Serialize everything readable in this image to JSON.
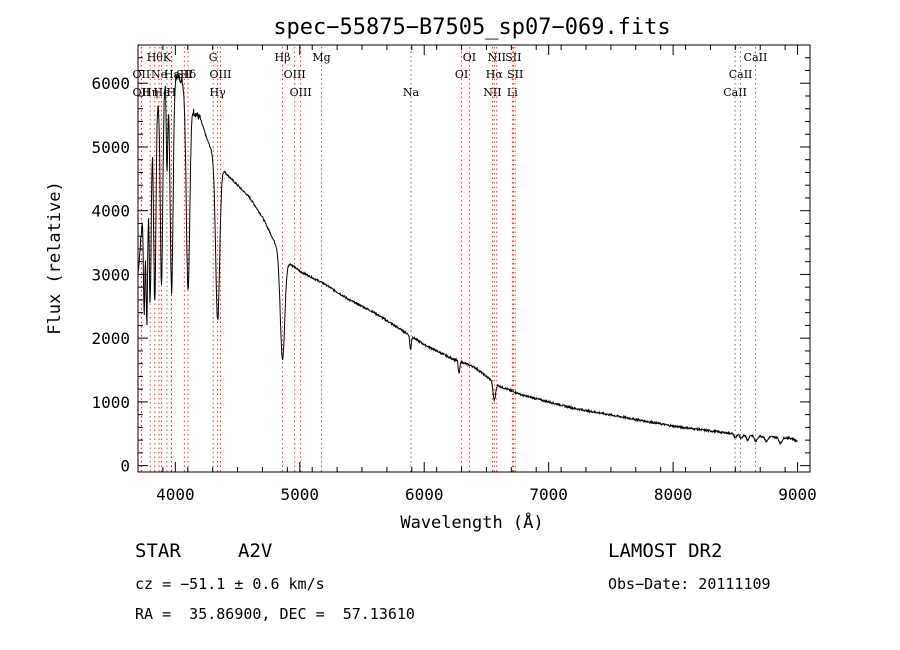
{
  "chart_data": {
    "type": "line",
    "title": "spec−55875−B7505_sp07−069.fits",
    "xlabel": "Wavelength (Å)",
    "ylabel": "Flux (relative)",
    "xlim": [
      3700,
      9100
    ],
    "ylim": [
      -100,
      6600
    ],
    "xticks": [
      4000,
      5000,
      6000,
      7000,
      8000,
      9000
    ],
    "yticks": [
      0,
      1000,
      2000,
      3000,
      4000,
      5000,
      6000
    ],
    "grid": false,
    "series": [
      {
        "color": "#000000",
        "continuum": [
          [
            3700,
            3000
          ],
          [
            3750,
            4200
          ],
          [
            3800,
            5200
          ],
          [
            3850,
            5700
          ],
          [
            3900,
            6000
          ],
          [
            3950,
            6150
          ],
          [
            4000,
            6150
          ],
          [
            4050,
            6050
          ],
          [
            4100,
            5900
          ],
          [
            4150,
            5550
          ],
          [
            4200,
            5450
          ],
          [
            4250,
            5150
          ],
          [
            4300,
            4900
          ],
          [
            4400,
            4600
          ],
          [
            4500,
            4400
          ],
          [
            4600,
            4200
          ],
          [
            4700,
            3900
          ],
          [
            4800,
            3500
          ],
          [
            4900,
            3200
          ],
          [
            5000,
            3050
          ],
          [
            5200,
            2850
          ],
          [
            5400,
            2600
          ],
          [
            5600,
            2400
          ],
          [
            5800,
            2150
          ],
          [
            6000,
            1900
          ],
          [
            6200,
            1700
          ],
          [
            6400,
            1550
          ],
          [
            6600,
            1250
          ],
          [
            6800,
            1100
          ],
          [
            7000,
            1000
          ],
          [
            7200,
            900
          ],
          [
            7400,
            830
          ],
          [
            7600,
            760
          ],
          [
            7800,
            690
          ],
          [
            8000,
            620
          ],
          [
            8200,
            570
          ],
          [
            8400,
            520
          ],
          [
            8600,
            480
          ],
          [
            8800,
            450
          ],
          [
            8950,
            430
          ],
          [
            9000,
            380
          ]
        ],
        "absorption_lines": [
          {
            "x": 3750,
            "depth": 1800,
            "width": 6
          },
          {
            "x": 3771,
            "depth": 2400,
            "width": 7
          },
          {
            "x": 3798,
            "depth": 2600,
            "width": 8
          },
          {
            "x": 3835,
            "depth": 3000,
            "width": 9
          },
          {
            "x": 3889,
            "depth": 3100,
            "width": 10
          },
          {
            "x": 3933,
            "depth": 1500,
            "width": 6
          },
          {
            "x": 3970,
            "depth": 3400,
            "width": 12
          },
          {
            "x": 4102,
            "depth": 3100,
            "width": 14
          },
          {
            "x": 4340,
            "depth": 2500,
            "width": 16
          },
          {
            "x": 4861,
            "depth": 1650,
            "width": 18
          },
          {
            "x": 5890,
            "depth": 220,
            "width": 6
          },
          {
            "x": 6280,
            "depth": 200,
            "width": 6
          },
          {
            "x": 6563,
            "depth": 280,
            "width": 10
          },
          {
            "x": 8500,
            "depth": 60,
            "width": 10
          },
          {
            "x": 8545,
            "depth": 70,
            "width": 10
          },
          {
            "x": 8598,
            "depth": 80,
            "width": 10
          },
          {
            "x": 8665,
            "depth": 90,
            "width": 12
          },
          {
            "x": 8750,
            "depth": 80,
            "width": 12
          },
          {
            "x": 8863,
            "depth": 90,
            "width": 12
          }
        ]
      }
    ],
    "line_markers": [
      {
        "x": 3727,
        "label": "OII",
        "row": 1
      },
      {
        "x": 3727,
        "label": "OII",
        "row": 2
      },
      {
        "x": 3798,
        "label": "Hη",
        "row": 2
      },
      {
        "x": 3835,
        "label": "Hθ",
        "row": 0
      },
      {
        "x": 3869,
        "label": "Ne",
        "row": 1
      },
      {
        "x": 3889,
        "label": "He",
        "row": 2
      },
      {
        "x": 3933,
        "label": "K",
        "row": 0
      },
      {
        "x": 3968,
        "label": "H",
        "row": 2
      },
      {
        "x": 3970,
        "label": "Hε",
        "row": 1
      },
      {
        "x": 4072,
        "label": "SII",
        "row": 1
      },
      {
        "x": 4102,
        "label": "Hδ",
        "row": 1
      },
      {
        "x": 4304,
        "label": "G",
        "row": 0
      },
      {
        "x": 4340,
        "label": "Hγ",
        "row": 2
      },
      {
        "x": 4363,
        "label": "OIII",
        "row": 1
      },
      {
        "x": 4861,
        "label": "Hβ",
        "row": 0
      },
      {
        "x": 4959,
        "label": "OIII",
        "row": 1
      },
      {
        "x": 5007,
        "label": "OIII",
        "row": 2
      },
      {
        "x": 5175,
        "label": "Mg",
        "row": 0
      },
      {
        "x": 5894,
        "label": "Na",
        "row": 2
      },
      {
        "x": 6300,
        "label": "OI",
        "row": 1
      },
      {
        "x": 6363,
        "label": "OI",
        "row": 0
      },
      {
        "x": 6548,
        "label": "NII",
        "row": 2
      },
      {
        "x": 6563,
        "label": "Hα",
        "row": 1
      },
      {
        "x": 6583,
        "label": "NII",
        "row": 0
      },
      {
        "x": 6716,
        "label": "SII",
        "row": 0
      },
      {
        "x": 6731,
        "label": "SII",
        "row": 1
      },
      {
        "x": 6708,
        "label": "Li",
        "row": 2
      },
      {
        "x": 8498,
        "label": "CaII",
        "row": 2
      },
      {
        "x": 8542,
        "label": "CaII",
        "row": 1
      },
      {
        "x": 8662,
        "label": "CaII",
        "row": 0
      }
    ],
    "marker_colors": {
      "emission": "#ff0000",
      "absorption": "#555555"
    }
  },
  "info": {
    "object_class": "STAR",
    "subclass": "A2V",
    "survey": "LAMOST DR2",
    "velocity": "cz = −51.1 ± 0.6 km/s",
    "obs_date": "Obs−Date: 20111109",
    "coords": "RA =  35.86900, DEC =  57.13610"
  }
}
